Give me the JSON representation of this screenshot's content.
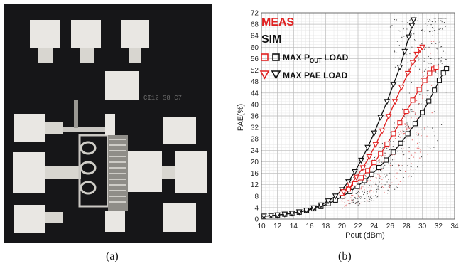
{
  "captions": {
    "a": "(a)",
    "b": "(b)"
  },
  "photo": {
    "chip_marking": "CI12 S8 C7",
    "colors": {
      "background": "#161618",
      "pad": "#e9e7e3",
      "trace": "#c9c7c2"
    }
  },
  "chart_data": {
    "type": "line",
    "xlabel": "Pout (dBm)",
    "ylabel": "PAE(%)",
    "xlim": [
      10,
      34
    ],
    "ylim": [
      0,
      72
    ],
    "xticks": [
      10,
      12,
      14,
      16,
      18,
      20,
      22,
      24,
      26,
      28,
      30,
      32,
      34
    ],
    "yticks": [
      0,
      4,
      8,
      12,
      16,
      20,
      24,
      28,
      32,
      36,
      40,
      44,
      48,
      52,
      56,
      60,
      64,
      68,
      72
    ],
    "grid": true,
    "legend": {
      "meas": "MEAS",
      "sim": "SIM",
      "pout_prefix": "MAX P",
      "pout_sub": "OUT",
      "pout_suffix": " LOAD",
      "pae_label": "MAX PAE LOAD",
      "placement": "top-left"
    },
    "colors": {
      "meas": "#e02020",
      "sim": "#111111"
    },
    "series": [
      {
        "name": "SIM",
        "marker": "square",
        "color": "#111111",
        "x": [
          10.3,
          11.2,
          12.0,
          12.9,
          13.8,
          14.7,
          15.6,
          16.5,
          17.4,
          18.3,
          19.2,
          20.1,
          21.0,
          21.9,
          22.8,
          23.7,
          24.6,
          25.5,
          26.4,
          27.3,
          28.2,
          29.1,
          30.0,
          30.8,
          31.5,
          32.1,
          32.6,
          33.0
        ],
        "y": [
          1,
          1.2,
          1.4,
          1.7,
          2,
          2.4,
          3,
          3.6,
          4.4,
          5.4,
          6.6,
          8,
          9.6,
          11.4,
          13.4,
          15.6,
          18,
          20.6,
          23.4,
          26.5,
          29.8,
          33.3,
          37.2,
          41.2,
          45,
          48.5,
          51,
          52.5
        ]
      },
      {
        "name": "SIM",
        "marker": "triangle",
        "color": "#111111",
        "x": [
          10.3,
          11.2,
          12.0,
          12.9,
          13.8,
          14.7,
          15.6,
          16.5,
          17.4,
          18.3,
          19.2,
          20.0,
          20.8,
          21.6,
          22.4,
          23.2,
          24.0,
          24.8,
          25.6,
          26.4,
          27.2,
          27.8,
          28.3,
          28.7,
          28.9
        ],
        "y": [
          1,
          1.2,
          1.4,
          1.7,
          2,
          2.5,
          3.1,
          3.9,
          4.9,
          6.3,
          8,
          10.2,
          13,
          16.5,
          20.5,
          25,
          30,
          35.5,
          41,
          47,
          53,
          58.5,
          63.5,
          67.5,
          69.5
        ]
      },
      {
        "name": "MEAS",
        "marker": "square",
        "color": "#e02020",
        "x": [
          20.0,
          20.8,
          21.6,
          22.4,
          23.2,
          24.0,
          24.8,
          25.6,
          26.4,
          27.2,
          28.0,
          28.8,
          29.6,
          30.3,
          30.9,
          31.4,
          31.7
        ],
        "y": [
          9,
          10.5,
          12.3,
          14.4,
          16.9,
          19.7,
          22.8,
          26.2,
          29.8,
          33.6,
          37.6,
          41.5,
          45.2,
          48.4,
          50.9,
          52.4,
          53
        ]
      },
      {
        "name": "MEAS",
        "marker": "triangle",
        "color": "#e02020",
        "x": [
          20.2,
          21.0,
          21.8,
          22.6,
          23.4,
          24.2,
          25.0,
          25.8,
          26.6,
          27.4,
          28.2,
          28.8,
          29.3,
          29.7,
          30.0
        ],
        "y": [
          9.5,
          11.8,
          14.6,
          17.9,
          21.7,
          26,
          30.7,
          35.8,
          41,
          46,
          50.8,
          54.6,
          57.5,
          59.2,
          60
        ]
      }
    ]
  }
}
